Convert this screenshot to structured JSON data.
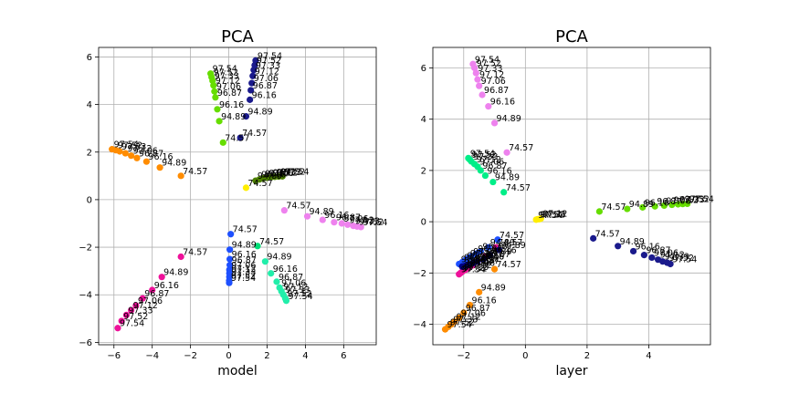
{
  "figure": {
    "background": "#ffffff"
  },
  "chart_data": [
    {
      "type": "scatter",
      "title": "PCA",
      "xlabel": "model",
      "ylabel": "",
      "xlim": [
        -6.8,
        7.7
      ],
      "ylim": [
        -6.1,
        6.4
      ],
      "xticks": [
        -6,
        -4,
        -2,
        0,
        2,
        4,
        6
      ],
      "yticks": [
        -6,
        -4,
        -2,
        0,
        2,
        4,
        6
      ],
      "grid": true,
      "series": [
        {
          "color": "#1a1a8c",
          "points": [
            {
              "x": 0.6,
              "y": 2.6,
              "label": "74.57"
            },
            {
              "x": 0.9,
              "y": 3.5,
              "label": "94.89"
            },
            {
              "x": 1.1,
              "y": 4.2,
              "label": "96.16"
            },
            {
              "x": 1.15,
              "y": 4.6,
              "label": "96.87"
            },
            {
              "x": 1.2,
              "y": 4.9,
              "label": "97.06"
            },
            {
              "x": 1.25,
              "y": 5.2,
              "label": "97.12"
            },
            {
              "x": 1.3,
              "y": 5.45,
              "label": "97.33"
            },
            {
              "x": 1.35,
              "y": 5.65,
              "label": "97.52"
            },
            {
              "x": 1.4,
              "y": 5.85,
              "label": "97.54"
            }
          ]
        },
        {
          "color": "#66dd00",
          "points": [
            {
              "x": -0.3,
              "y": 2.4,
              "label": "74.57"
            },
            {
              "x": -0.5,
              "y": 3.3,
              "label": "94.89"
            },
            {
              "x": -0.6,
              "y": 3.8,
              "label": "96.16"
            },
            {
              "x": -0.7,
              "y": 4.3,
              "label": "96.87"
            },
            {
              "x": -0.75,
              "y": 4.55,
              "label": "97.06"
            },
            {
              "x": -0.8,
              "y": 4.8,
              "label": "97.12"
            },
            {
              "x": -0.85,
              "y": 5.0,
              "label": "97.33"
            },
            {
              "x": -0.9,
              "y": 5.15,
              "label": "97.52"
            },
            {
              "x": -0.95,
              "y": 5.3,
              "label": "97.54"
            }
          ]
        },
        {
          "color": "#ff8c00",
          "points": [
            {
              "x": -2.5,
              "y": 1.0,
              "label": "74.57"
            },
            {
              "x": -3.6,
              "y": 1.35,
              "label": "94.89"
            },
            {
              "x": -4.3,
              "y": 1.6,
              "label": "96.16"
            },
            {
              "x": -4.8,
              "y": 1.75,
              "label": "96.87"
            },
            {
              "x": -5.1,
              "y": 1.85,
              "label": "97.06"
            },
            {
              "x": -5.4,
              "y": 1.95,
              "label": "97.12"
            },
            {
              "x": -5.7,
              "y": 2.03,
              "label": "97.33"
            },
            {
              "x": -5.9,
              "y": 2.08,
              "label": "97.52"
            },
            {
              "x": -6.1,
              "y": 2.12,
              "label": "97.54"
            }
          ]
        },
        {
          "color": "#ffee00",
          "points": [
            {
              "x": 0.9,
              "y": 0.5,
              "label": "74.57"
            }
          ]
        },
        {
          "color": "#4d8000",
          "points": [
            {
              "x": 1.4,
              "y": 0.8,
              "label": "94.89"
            },
            {
              "x": 1.6,
              "y": 0.85,
              "label": "96.16"
            },
            {
              "x": 1.8,
              "y": 0.9,
              "label": "96.87"
            },
            {
              "x": 2.0,
              "y": 0.92,
              "label": "97.06"
            },
            {
              "x": 2.2,
              "y": 0.94,
              "label": "97.12"
            },
            {
              "x": 2.4,
              "y": 0.96,
              "label": "97.33"
            },
            {
              "x": 2.6,
              "y": 0.97,
              "label": "97.52"
            },
            {
              "x": 2.8,
              "y": 0.98,
              "label": "97.54"
            }
          ]
        },
        {
          "color": "#ee82ee",
          "points": [
            {
              "x": 2.9,
              "y": -0.45,
              "label": "74.57"
            },
            {
              "x": 4.1,
              "y": -0.7,
              "label": "94.89"
            },
            {
              "x": 4.9,
              "y": -0.85,
              "label": "96.16"
            },
            {
              "x": 5.5,
              "y": -0.95,
              "label": "96.87"
            },
            {
              "x": 5.9,
              "y": -1.0,
              "label": "97.06"
            },
            {
              "x": 6.2,
              "y": -1.05,
              "label": "97.12"
            },
            {
              "x": 6.5,
              "y": -1.1,
              "label": "97.33"
            },
            {
              "x": 6.7,
              "y": -1.13,
              "label": "97.52"
            },
            {
              "x": 6.9,
              "y": -1.15,
              "label": "97.54"
            }
          ]
        },
        {
          "color": "#1e50ff",
          "points": [
            {
              "x": 0.1,
              "y": -1.45,
              "label": "74.57"
            },
            {
              "x": 0.05,
              "y": -2.1,
              "label": "94.89"
            },
            {
              "x": 0.05,
              "y": -2.5,
              "label": "96.16"
            },
            {
              "x": 0.05,
              "y": -2.75,
              "label": "96.87"
            },
            {
              "x": 0.03,
              "y": -2.95,
              "label": "97.06"
            },
            {
              "x": 0.03,
              "y": -3.1,
              "label": "97.12"
            },
            {
              "x": 0.03,
              "y": -3.25,
              "label": "97.33"
            },
            {
              "x": 0.02,
              "y": -3.4,
              "label": "97.52"
            },
            {
              "x": 0.02,
              "y": -3.5,
              "label": "97.54"
            }
          ]
        },
        {
          "color": "#00dd77",
          "points": [
            {
              "x": 1.5,
              "y": -1.95,
              "label": "74.57"
            }
          ]
        },
        {
          "color": "#22eeaa",
          "points": [
            {
              "x": 1.9,
              "y": -2.6,
              "label": "94.89"
            },
            {
              "x": 2.2,
              "y": -3.1,
              "label": "96.16"
            },
            {
              "x": 2.5,
              "y": -3.45,
              "label": "96.87"
            },
            {
              "x": 2.65,
              "y": -3.7,
              "label": "97.06"
            },
            {
              "x": 2.75,
              "y": -3.85,
              "label": "97.12"
            },
            {
              "x": 2.85,
              "y": -4.0,
              "label": "97.33"
            },
            {
              "x": 2.95,
              "y": -4.15,
              "label": "97.52"
            },
            {
              "x": 3.0,
              "y": -4.25,
              "label": "97.54"
            }
          ]
        },
        {
          "color": "#ee1199",
          "points": [
            {
              "x": -2.5,
              "y": -2.4,
              "label": "74.57"
            },
            {
              "x": -3.5,
              "y": -3.25,
              "label": "94.89"
            },
            {
              "x": -4.0,
              "y": -3.8,
              "label": "96.16"
            },
            {
              "x": -4.5,
              "y": -4.15,
              "label": "96.87"
            },
            {
              "x": -4.85,
              "y": -4.45,
              "label": "97.06"
            },
            {
              "x": -5.1,
              "y": -4.65,
              "label": "97.12"
            },
            {
              "x": -5.35,
              "y": -4.85,
              "label": "97.33"
            },
            {
              "x": -5.6,
              "y": -5.1,
              "label": "97.52"
            },
            {
              "x": -5.8,
              "y": -5.4,
              "label": "97.54"
            }
          ]
        }
      ]
    },
    {
      "type": "scatter",
      "title": "PCA",
      "xlabel": "layer",
      "ylabel": "",
      "xlim": [
        -3.0,
        6.0
      ],
      "ylim": [
        -4.8,
        6.8
      ],
      "xticks": [
        -2,
        0,
        2,
        4
      ],
      "yticks": [
        -4,
        -2,
        0,
        2,
        4,
        6
      ],
      "grid": true,
      "series": [
        {
          "color": "#ee82ee",
          "points": [
            {
              "x": -0.6,
              "y": 2.7,
              "label": "74.57"
            },
            {
              "x": -1.0,
              "y": 3.85,
              "label": "94.89"
            },
            {
              "x": -1.2,
              "y": 4.5,
              "label": "96.16"
            },
            {
              "x": -1.4,
              "y": 4.95,
              "label": "96.87"
            },
            {
              "x": -1.5,
              "y": 5.3,
              "label": "97.06"
            },
            {
              "x": -1.55,
              "y": 5.55,
              "label": "97.12"
            },
            {
              "x": -1.6,
              "y": 5.8,
              "label": "97.33"
            },
            {
              "x": -1.65,
              "y": 6.0,
              "label": "97.52"
            },
            {
              "x": -1.7,
              "y": 6.15,
              "label": "97.54"
            }
          ]
        },
        {
          "color": "#00ee88",
          "points": [
            {
              "x": -0.7,
              "y": 1.15,
              "label": "74.57"
            },
            {
              "x": -1.05,
              "y": 1.55,
              "label": "94.89"
            },
            {
              "x": -1.3,
              "y": 1.8,
              "label": "96.16"
            },
            {
              "x": -1.45,
              "y": 2.0,
              "label": "96.87"
            },
            {
              "x": -1.55,
              "y": 2.15,
              "label": "97.06"
            },
            {
              "x": -1.65,
              "y": 2.25,
              "label": "97.12"
            },
            {
              "x": -1.75,
              "y": 2.35,
              "label": "97.33"
            },
            {
              "x": -1.8,
              "y": 2.42,
              "label": "97.52"
            },
            {
              "x": -1.85,
              "y": 2.48,
              "label": "97.54"
            }
          ]
        },
        {
          "color": "#ffee00",
          "points": [
            {
              "x": 0.35,
              "y": 0.08,
              "label": "97.54"
            },
            {
              "x": 0.4,
              "y": 0.1,
              "label": "97.52"
            },
            {
              "x": 0.45,
              "y": 0.1,
              "label": "97.33"
            },
            {
              "x": 0.5,
              "y": 0.12,
              "label": "97.12"
            }
          ]
        },
        {
          "color": "#66dd00",
          "points": [
            {
              "x": 2.4,
              "y": 0.4,
              "label": "74.57"
            },
            {
              "x": 3.3,
              "y": 0.5,
              "label": "94.89"
            },
            {
              "x": 3.8,
              "y": 0.56,
              "label": "96.16"
            },
            {
              "x": 4.2,
              "y": 0.6,
              "label": "96.87"
            },
            {
              "x": 4.5,
              "y": 0.63,
              "label": "97.06"
            },
            {
              "x": 4.75,
              "y": 0.66,
              "label": "97.12"
            },
            {
              "x": 4.95,
              "y": 0.68,
              "label": "97.33"
            },
            {
              "x": 5.1,
              "y": 0.69,
              "label": "97.52"
            },
            {
              "x": 5.25,
              "y": 0.7,
              "label": "97.54"
            }
          ]
        },
        {
          "color": "#1a1a8c",
          "points": [
            {
              "x": 2.2,
              "y": -0.65,
              "label": "74.57"
            },
            {
              "x": 3.0,
              "y": -0.95,
              "label": "94.89"
            },
            {
              "x": 3.5,
              "y": -1.15,
              "label": "96.16"
            },
            {
              "x": 3.85,
              "y": -1.3,
              "label": "96.87"
            },
            {
              "x": 4.1,
              "y": -1.4,
              "label": "97.06"
            },
            {
              "x": 4.3,
              "y": -1.48,
              "label": "97.12"
            },
            {
              "x": 4.45,
              "y": -1.55,
              "label": "97.33"
            },
            {
              "x": 4.6,
              "y": -1.6,
              "label": "97.52"
            },
            {
              "x": 4.7,
              "y": -1.65,
              "label": "97.54"
            }
          ]
        },
        {
          "color": "#1e50ff",
          "points": [
            {
              "x": -0.9,
              "y": -0.7,
              "label": "74.57"
            },
            {
              "x": -1.2,
              "y": -1.0,
              "label": "94.89"
            },
            {
              "x": -1.45,
              "y": -1.15,
              "label": "96.16"
            },
            {
              "x": -1.6,
              "y": -1.25,
              "label": "96.87"
            },
            {
              "x": -1.75,
              "y": -1.35,
              "label": "97.06"
            },
            {
              "x": -1.85,
              "y": -1.42,
              "label": "97.12"
            },
            {
              "x": -1.95,
              "y": -1.5,
              "label": "97.33"
            },
            {
              "x": -2.05,
              "y": -1.58,
              "label": "97.52"
            },
            {
              "x": -2.15,
              "y": -1.65,
              "label": "97.54"
            }
          ]
        },
        {
          "color": "#ee1199",
          "points": [
            {
              "x": -0.95,
              "y": -1.0,
              "label": "74.57"
            },
            {
              "x": -1.3,
              "y": -1.35,
              "label": "94.89"
            },
            {
              "x": -1.55,
              "y": -1.55,
              "label": "96.16"
            },
            {
              "x": -1.7,
              "y": -1.7,
              "label": "96.87"
            },
            {
              "x": -1.85,
              "y": -1.8,
              "label": "97.06"
            },
            {
              "x": -1.95,
              "y": -1.88,
              "label": "97.12"
            },
            {
              "x": -2.05,
              "y": -1.95,
              "label": "97.33"
            },
            {
              "x": -2.1,
              "y": -2.0,
              "label": "97.52"
            },
            {
              "x": -2.15,
              "y": -2.05,
              "label": "97.54"
            }
          ]
        },
        {
          "color": "#000080",
          "points": [
            {
              "x": -0.85,
              "y": -1.1,
              "label": "94.89"
            },
            {
              "x": -1.15,
              "y": -1.3,
              "label": "96.16"
            },
            {
              "x": -1.35,
              "y": -1.45,
              "label": "96.87"
            },
            {
              "x": -1.55,
              "y": -1.55,
              "label": "97.06"
            },
            {
              "x": -1.7,
              "y": -1.62,
              "label": "97.12"
            },
            {
              "x": -1.85,
              "y": -1.68,
              "label": "97.33"
            },
            {
              "x": -1.95,
              "y": -1.72,
              "label": "97.52"
            },
            {
              "x": -2.05,
              "y": -1.75,
              "label": "97.54"
            }
          ]
        },
        {
          "color": "#ff8c00",
          "points": [
            {
              "x": -1.0,
              "y": -1.85,
              "label": "74.57"
            },
            {
              "x": -1.5,
              "y": -2.75,
              "label": "94.89"
            },
            {
              "x": -1.8,
              "y": -3.25,
              "label": "96.16"
            },
            {
              "x": -2.0,
              "y": -3.55,
              "label": "96.87"
            },
            {
              "x": -2.15,
              "y": -3.75,
              "label": "97.06"
            },
            {
              "x": -2.3,
              "y": -3.9,
              "label": "97.12"
            },
            {
              "x": -2.4,
              "y": -4.0,
              "label": "97.33"
            },
            {
              "x": -2.5,
              "y": -4.1,
              "label": "97.52"
            },
            {
              "x": -2.6,
              "y": -4.2,
              "label": "97.54"
            }
          ]
        }
      ]
    }
  ]
}
